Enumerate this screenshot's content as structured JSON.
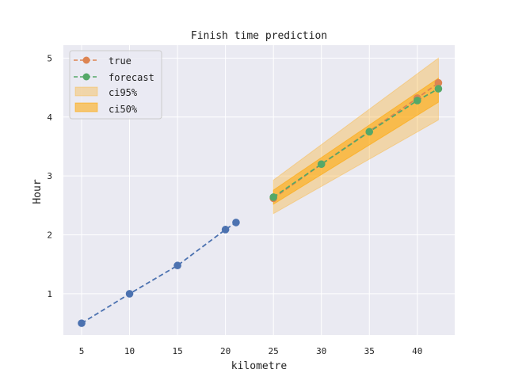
{
  "chart_data": {
    "type": "line",
    "title": "Finish time prediction",
    "xlabel": "kilometre",
    "ylabel": "Hour",
    "xlim": [
      3.1,
      43.9
    ],
    "ylim": [
      0.3,
      5.22
    ],
    "x_ticks": [
      5,
      10,
      15,
      20,
      25,
      30,
      35,
      40
    ],
    "y_ticks": [
      1,
      2,
      3,
      4,
      5
    ],
    "grid": true,
    "legend_placement": "top-left",
    "colors": {
      "plot_bg": "#eaeaf2",
      "grid": "#ffffff",
      "observed": "#4c72b0",
      "true": "#dd8452",
      "forecast": "#55a868",
      "band": "#ffa500"
    },
    "observed": {
      "x": [
        5,
        10,
        15,
        20,
        21.1
      ],
      "y": [
        0.5,
        1.0,
        1.48,
        2.09,
        2.21
      ]
    },
    "series": [
      {
        "name": "true",
        "x": [
          25,
          30,
          40,
          42.2
        ],
        "y": [
          2.62,
          3.2,
          4.32,
          4.58
        ]
      },
      {
        "name": "forecast",
        "x": [
          25,
          30,
          35,
          40,
          42.2
        ],
        "y": [
          2.64,
          3.2,
          3.75,
          4.28,
          4.48
        ]
      }
    ],
    "bands": [
      {
        "name": "ci95%",
        "opacity": 0.3,
        "x": [
          25,
          42.2
        ],
        "lower": [
          2.36,
          3.95
        ],
        "upper": [
          2.93,
          5.0
        ]
      },
      {
        "name": "ci50%",
        "opacity": 0.55,
        "x": [
          25,
          42.2
        ],
        "lower": [
          2.52,
          4.25
        ],
        "upper": [
          2.76,
          4.66
        ]
      }
    ],
    "legend": [
      "true",
      "forecast",
      "ci95%",
      "ci50%"
    ]
  }
}
